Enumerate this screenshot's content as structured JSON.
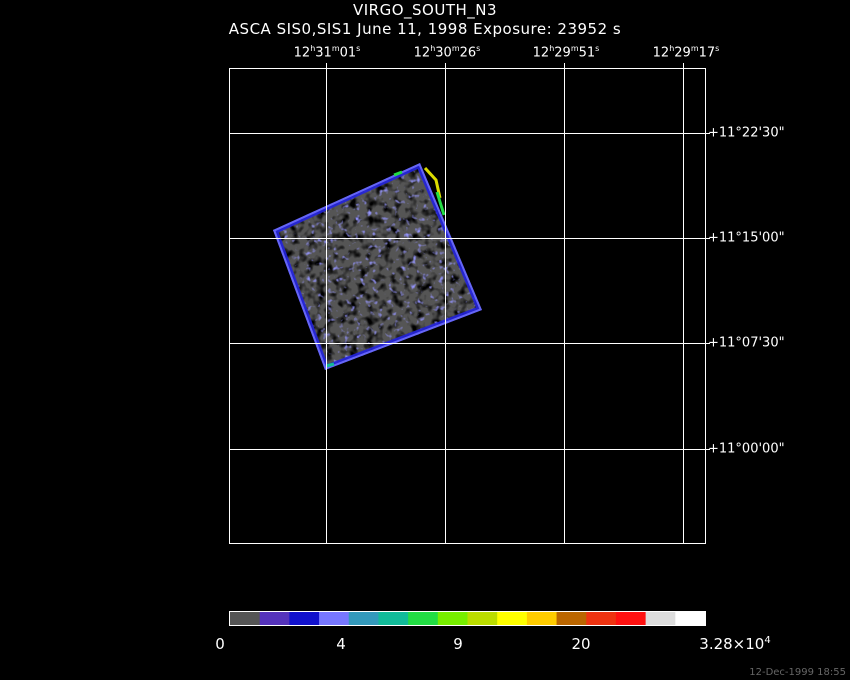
{
  "title": "VIRGO_SOUTH_N3",
  "subtitle": "ASCA SIS0,SIS1 June 11, 1998 Exposure: 23952 s",
  "ra_labels": [
    {
      "h": "12",
      "m": "31",
      "s": "01"
    },
    {
      "h": "12",
      "m": "30",
      "s": "26"
    },
    {
      "h": "12",
      "m": "29",
      "s": "51"
    },
    {
      "h": "12",
      "m": "29",
      "s": "17"
    }
  ],
  "dec_labels": [
    "+11°22'30\"",
    "+11°15'00\"",
    "+11°07'30\"",
    "+11°00'00\""
  ],
  "colorbar": {
    "colors": [
      "#555555",
      "#5533bb",
      "#1111cc",
      "#7777ff",
      "#3399bb",
      "#11bb99",
      "#22dd44",
      "#77ee00",
      "#bbdd00",
      "#ffff00",
      "#ffcc00",
      "#bb6600",
      "#ee3311",
      "#ff1111",
      "#dddddd",
      "#ffffff"
    ],
    "labels": [
      {
        "text": "0"
      },
      {
        "text": "4"
      },
      {
        "text": "9"
      },
      {
        "text": "20"
      },
      {
        "text": "3.28×10",
        "sup": "4"
      }
    ]
  },
  "footer": "12-Dec-1999 18:55"
}
